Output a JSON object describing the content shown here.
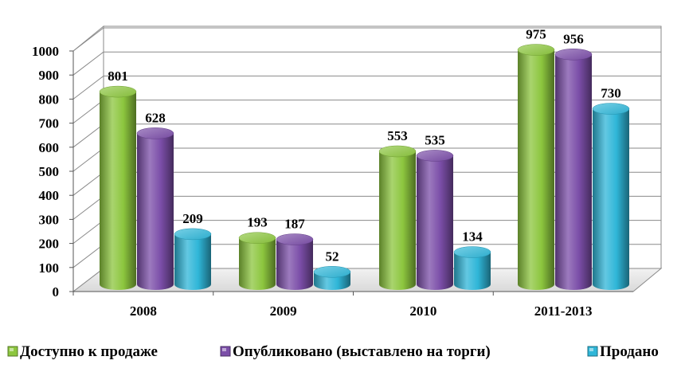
{
  "chart_data": {
    "type": "bar",
    "categories": [
      "2008",
      "2009",
      "2010",
      "2011-2013"
    ],
    "series": [
      {
        "name": "Доступно  к продаже",
        "values": [
          801,
          193,
          553,
          975
        ],
        "color": "#8cc63e"
      },
      {
        "name": "Опубликовано  (выставлено на торги)",
        "values": [
          628,
          187,
          535,
          956
        ],
        "color": "#7b4ea8"
      },
      {
        "name": "Продано",
        "values": [
          209,
          52,
          134,
          730
        ],
        "color": "#2fb6d8"
      }
    ],
    "yticks": [
      "0",
      "100",
      "200",
      "300",
      "400",
      "500",
      "600",
      "700",
      "800",
      "900",
      "1000"
    ],
    "ylim": [
      0,
      1000
    ],
    "grid": true,
    "legend_position": "bottom",
    "data_labels": true,
    "style": "3d-cylinder"
  }
}
